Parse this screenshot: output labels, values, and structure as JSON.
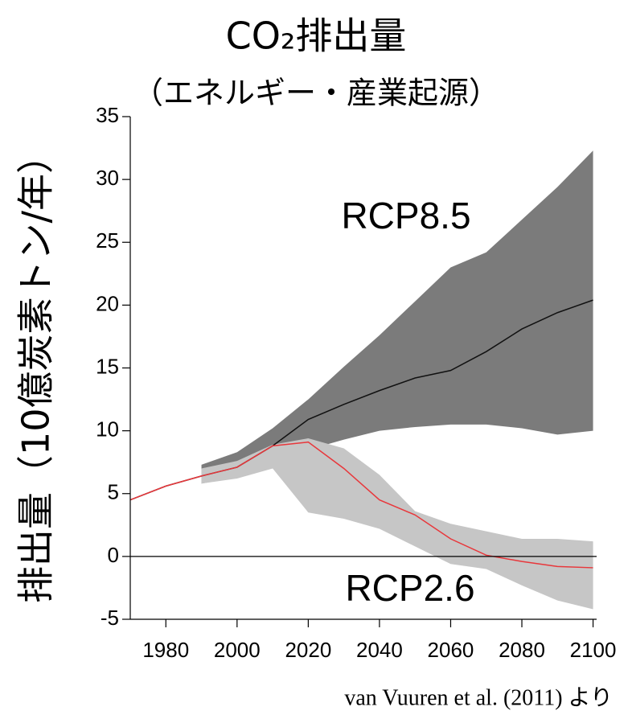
{
  "chart_data": {
    "type": "line",
    "title": "CO₂排出量",
    "subtitle": "（エネルギー・産業起源）",
    "y_label": "排出量（10億炭素トン/年）",
    "source": "van Vuuren et al. (2011) より",
    "x": [
      1970,
      1980,
      1990,
      2000,
      2010,
      2020,
      2030,
      2040,
      2050,
      2060,
      2070,
      2080,
      2090,
      2100
    ],
    "xlim": [
      1970,
      2101
    ],
    "xticks": [
      1980,
      2000,
      2020,
      2040,
      2060,
      2080,
      2100
    ],
    "ylim": [
      -5,
      35
    ],
    "yticks": [
      -5,
      0,
      5,
      10,
      15,
      20,
      25,
      30,
      35
    ],
    "series": [
      {
        "name": "RCP8.5",
        "color": "#111111",
        "band_color": "#7b7b7b",
        "values": [
          4.5,
          5.6,
          6.4,
          7.1,
          8.8,
          10.9,
          12.1,
          13.2,
          14.2,
          14.8,
          16.3,
          18.1,
          19.4,
          20.4
        ],
        "low": [
          null,
          null,
          5.8,
          6.3,
          7.8,
          8.5,
          9.3,
          10.0,
          10.3,
          10.5,
          10.5,
          10.2,
          9.7,
          10.0
        ],
        "high": [
          null,
          null,
          7.3,
          8.3,
          10.2,
          12.5,
          15.1,
          17.6,
          20.3,
          23.0,
          24.2,
          26.8,
          29.4,
          32.3
        ]
      },
      {
        "name": "RCP2.6",
        "color": "#e8373b",
        "band_color": "#c6c6c6",
        "values": [
          4.5,
          5.6,
          6.4,
          7.1,
          8.8,
          9.1,
          7.0,
          4.5,
          3.3,
          1.4,
          0.1,
          -0.4,
          -0.8,
          -0.9
        ],
        "low": [
          null,
          null,
          5.8,
          6.2,
          7.0,
          3.5,
          3.0,
          2.2,
          0.8,
          -0.6,
          -1.0,
          -2.3,
          -3.5,
          -4.2
        ],
        "high": [
          null,
          null,
          7.0,
          7.6,
          8.9,
          9.4,
          8.6,
          6.5,
          3.6,
          2.6,
          2.0,
          1.4,
          1.4,
          1.2
        ]
      }
    ]
  }
}
